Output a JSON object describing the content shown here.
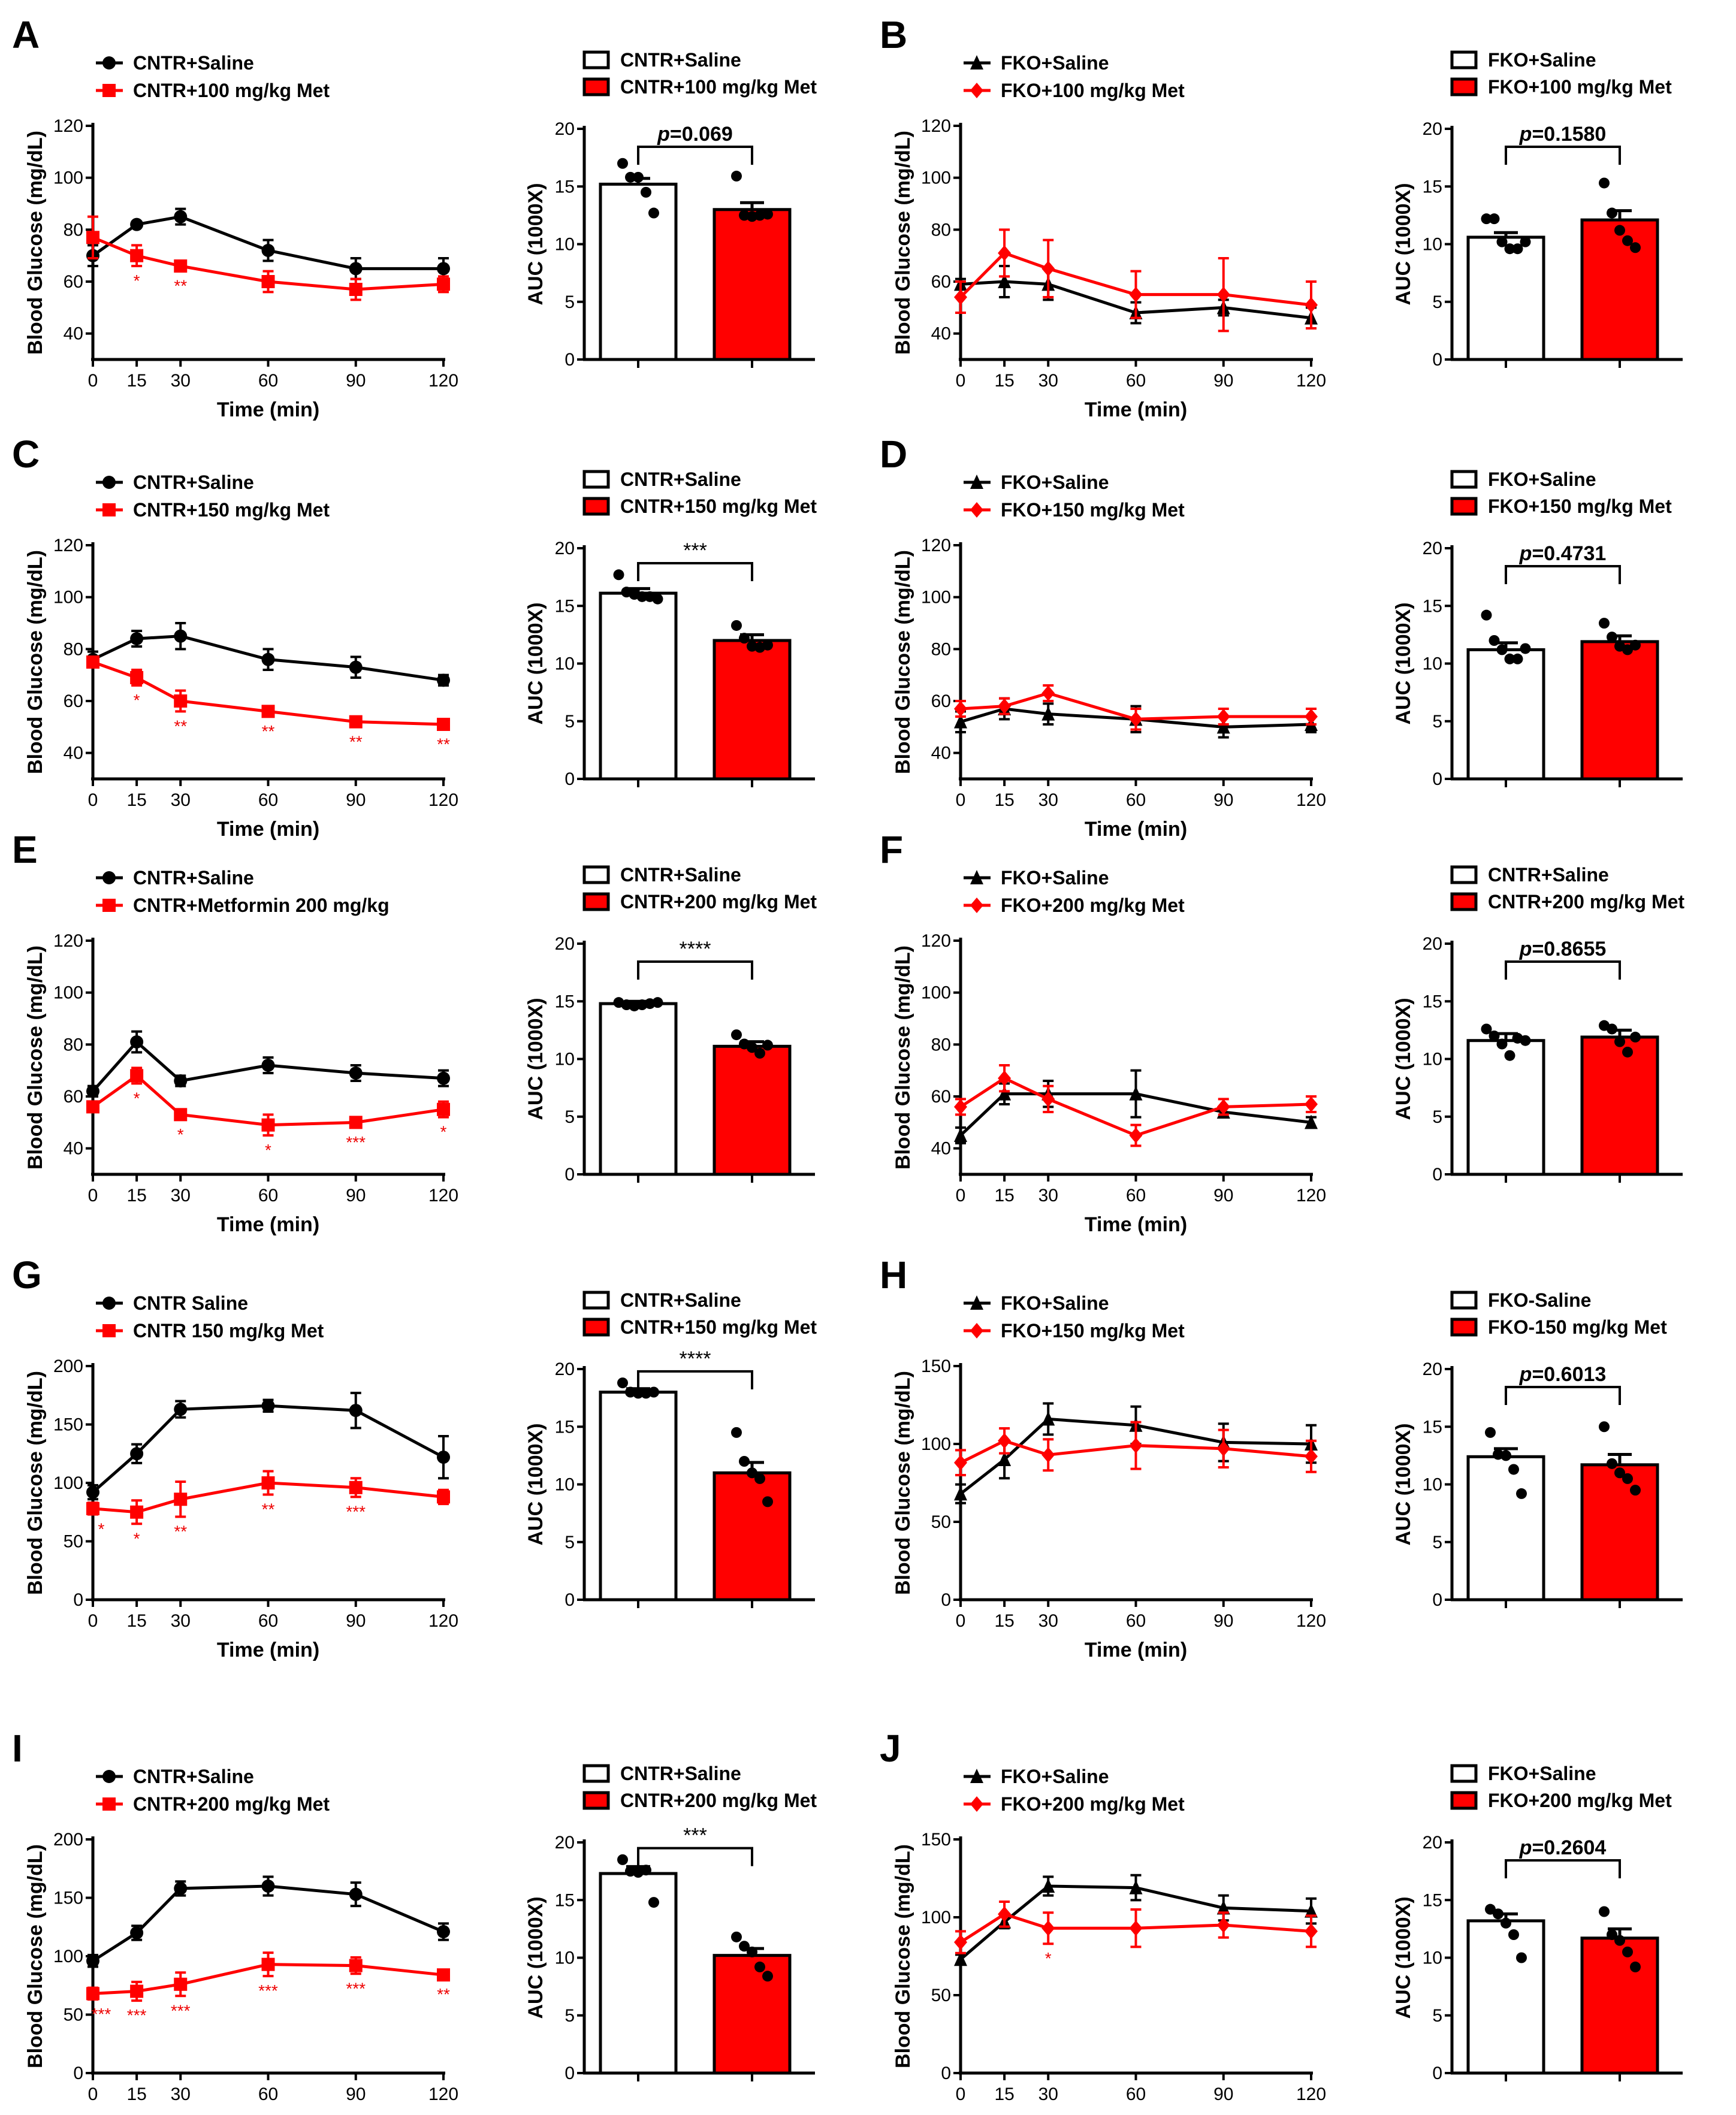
{
  "colors": {
    "saline": "#000000",
    "met": "#ff0000"
  },
  "common": {
    "line_ylabel": "Blood Glucose (mg/dL)",
    "line_xlabel": "Time (min)",
    "bar_ylabel": "AUC (1000X)"
  },
  "chart_data": [
    {
      "panel": "A",
      "type": "line+bar",
      "x": [
        0,
        15,
        30,
        60,
        90,
        120
      ],
      "ylim": [
        30,
        120
      ],
      "yticks": [
        40,
        60,
        80,
        100,
        120
      ],
      "marker_saline": "circle",
      "marker_met": "square",
      "line_legend": [
        "CNTR+Saline",
        "CNTR+100 mg/kg Met"
      ],
      "series": [
        {
          "name": "CNTR+Saline",
          "values": [
            70,
            82,
            85,
            72,
            65,
            65
          ],
          "err": [
            4,
            1,
            3,
            4,
            4,
            4
          ]
        },
        {
          "name": "CNTR+100 mg/kg Met",
          "values": [
            77,
            70,
            66,
            60,
            57,
            59
          ],
          "err": [
            8,
            4,
            2,
            4,
            4,
            3
          ]
        }
      ],
      "stars": [
        {
          "x": 15,
          "label": "*"
        },
        {
          "x": 30,
          "label": "**"
        }
      ],
      "bar": {
        "legend": [
          "CNTR+Saline",
          "CNTR+100 mg/kg Met"
        ],
        "ylim": [
          0,
          20
        ],
        "yticks": [
          0,
          5,
          10,
          15,
          20
        ],
        "values": [
          15.2,
          13.0
        ],
        "err": [
          0.5,
          0.6
        ],
        "points": [
          [
            17,
            15.8,
            15.8,
            14.5,
            12.7
          ],
          [
            15.9,
            12.5,
            12.4,
            12.5,
            12.6
          ]
        ],
        "p_prefix": "p",
        "p_text": "=0.069"
      }
    },
    {
      "panel": "B",
      "type": "line+bar",
      "x": [
        0,
        15,
        30,
        60,
        90,
        120
      ],
      "ylim": [
        30,
        120
      ],
      "yticks": [
        40,
        60,
        80,
        100,
        120
      ],
      "marker_saline": "triangle",
      "marker_met": "diamond",
      "line_legend": [
        "FKO+Saline",
        "FKO+100 mg/kg Met"
      ],
      "series": [
        {
          "name": "FKO+Saline",
          "values": [
            59,
            60,
            59,
            48,
            50,
            46
          ],
          "err": [
            2,
            6,
            6,
            4,
            3,
            4
          ]
        },
        {
          "name": "FKO+100 mg/kg Met",
          "values": [
            54,
            71,
            65,
            55,
            55,
            51
          ],
          "err": [
            6,
            9,
            11,
            9,
            14,
            9
          ]
        }
      ],
      "stars": [],
      "bar": {
        "legend": [
          "FKO+Saline",
          "FKO+100 mg/kg Met"
        ],
        "ylim": [
          0,
          20
        ],
        "yticks": [
          0,
          5,
          10,
          15,
          20
        ],
        "values": [
          10.6,
          12.1
        ],
        "err": [
          0.4,
          0.8
        ],
        "points": [
          [
            12.2,
            12.2,
            10.2,
            9.6,
            9.6,
            10.2
          ],
          [
            15.3,
            12.7,
            11.2,
            10.3,
            9.7
          ]
        ],
        "p_prefix": "p",
        "p_text": "=0.1580"
      }
    },
    {
      "panel": "C",
      "type": "line+bar",
      "x": [
        0,
        15,
        30,
        60,
        90,
        120
      ],
      "ylim": [
        30,
        120
      ],
      "yticks": [
        40,
        60,
        80,
        100,
        120
      ],
      "marker_saline": "circle",
      "marker_met": "square",
      "line_legend": [
        "CNTR+Saline",
        "CNTR+150 mg/kg Met"
      ],
      "series": [
        {
          "name": "CNTR+Saline",
          "values": [
            76,
            84,
            85,
            76,
            73,
            68
          ],
          "err": [
            3,
            3,
            5,
            4,
            4,
            2
          ]
        },
        {
          "name": "CNTR+150 mg/kg Met",
          "values": [
            75,
            69,
            60,
            56,
            52,
            51
          ],
          "err": [
            2,
            3,
            4,
            2,
            2,
            2
          ]
        }
      ],
      "stars": [
        {
          "x": 15,
          "label": "*"
        },
        {
          "x": 30,
          "label": "**"
        },
        {
          "x": 60,
          "label": "**"
        },
        {
          "x": 90,
          "label": "**"
        },
        {
          "x": 120,
          "label": "**"
        }
      ],
      "bar": {
        "legend": [
          "CNTR+Saline",
          "CNTR+150 mg/kg Met"
        ],
        "ylim": [
          0,
          20
        ],
        "yticks": [
          0,
          5,
          10,
          15,
          20
        ],
        "values": [
          16.1,
          12.0
        ],
        "err": [
          0.4,
          0.5
        ],
        "points": [
          [
            17.7,
            16.2,
            16,
            15.8,
            15.8,
            15.6
          ],
          [
            13.3,
            12.2,
            11.5,
            11.4,
            11.6
          ]
        ],
        "p_prefix": "",
        "p_text": "***"
      }
    },
    {
      "panel": "D",
      "type": "line+bar",
      "x": [
        0,
        15,
        30,
        60,
        90,
        120
      ],
      "ylim": [
        30,
        120
      ],
      "yticks": [
        40,
        60,
        80,
        100,
        120
      ],
      "marker_saline": "triangle",
      "marker_met": "diamond",
      "line_legend": [
        "FKO+Saline",
        "FKO+150 mg/kg Met"
      ],
      "series": [
        {
          "name": "FKO+Saline",
          "values": [
            52,
            57,
            55,
            53,
            50,
            51
          ],
          "err": [
            4,
            4,
            4,
            5,
            4,
            3
          ]
        },
        {
          "name": "FKO+150 mg/kg Met",
          "values": [
            57,
            58,
            63,
            53,
            54,
            54
          ],
          "err": [
            3,
            3,
            3,
            4,
            3,
            3
          ]
        }
      ],
      "stars": [],
      "bar": {
        "legend": [
          "FKO+Saline",
          "FKO+150 mg/kg Met"
        ],
        "ylim": [
          0,
          20
        ],
        "yticks": [
          0,
          5,
          10,
          15,
          20
        ],
        "values": [
          11.2,
          11.9
        ],
        "err": [
          0.6,
          0.5
        ],
        "points": [
          [
            14.2,
            12.0,
            11.2,
            10.4,
            10.4,
            11.3
          ],
          [
            13.5,
            12.3,
            11.5,
            11.2,
            11.6
          ]
        ],
        "p_prefix": "p",
        "p_text": "=0.4731"
      }
    },
    {
      "panel": "E",
      "type": "line+bar",
      "x": [
        0,
        15,
        30,
        60,
        90,
        120
      ],
      "ylim": [
        30,
        120
      ],
      "yticks": [
        40,
        60,
        80,
        100,
        120
      ],
      "marker_saline": "circle",
      "marker_met": "square",
      "line_legend": [
        "CNTR+Saline",
        "CNTR+Metformin 200 mg/kg"
      ],
      "series": [
        {
          "name": "CNTR+Saline",
          "values": [
            62,
            81,
            66,
            72,
            69,
            67
          ],
          "err": [
            2,
            4,
            2,
            3,
            3,
            3
          ]
        },
        {
          "name": "CNTR+Metformin 200 mg/kg",
          "values": [
            56,
            68,
            53,
            49,
            50,
            55
          ],
          "err": [
            2,
            3,
            2,
            4,
            2,
            3
          ]
        }
      ],
      "stars": [
        {
          "x": 15,
          "label": "*"
        },
        {
          "x": 30,
          "label": "*"
        },
        {
          "x": 60,
          "label": "*"
        },
        {
          "x": 90,
          "label": "***"
        },
        {
          "x": 120,
          "label": "*"
        }
      ],
      "bar": {
        "legend": [
          "CNTR+Saline",
          "CNTR+200 mg/kg Met"
        ],
        "ylim": [
          0,
          20
        ],
        "yticks": [
          0,
          5,
          10,
          15,
          20
        ],
        "values": [
          14.8,
          11.1
        ],
        "err": [
          0.2,
          0.4
        ],
        "points": [
          [
            14.9,
            14.7,
            14.6,
            14.7,
            14.8,
            14.9
          ],
          [
            12.1,
            11.3,
            11.0,
            10.5,
            11.2
          ]
        ],
        "p_prefix": "",
        "p_text": "****"
      }
    },
    {
      "panel": "F",
      "type": "line+bar",
      "x": [
        0,
        15,
        30,
        60,
        90,
        120
      ],
      "ylim": [
        30,
        120
      ],
      "yticks": [
        40,
        60,
        80,
        100,
        120
      ],
      "marker_saline": "triangle",
      "marker_met": "diamond",
      "line_legend": [
        "FKO+Saline",
        "FKO+200 mg/kg Met"
      ],
      "series": [
        {
          "name": "FKO+Saline",
          "values": [
            45,
            61,
            61,
            61,
            54,
            50
          ],
          "err": [
            3,
            4,
            5,
            9,
            2,
            2
          ]
        },
        {
          "name": "FKO+200 mg/kg Met",
          "values": [
            56,
            67,
            59,
            45,
            56,
            57
          ],
          "err": [
            3,
            5,
            5,
            4,
            3,
            3
          ]
        }
      ],
      "stars": [],
      "bar": {
        "legend": [
          "CNTR+Saline",
          "CNTR+200 mg/kg Met"
        ],
        "ylim": [
          0,
          20
        ],
        "yticks": [
          0,
          5,
          10,
          15,
          20
        ],
        "values": [
          11.6,
          11.9
        ],
        "err": [
          0.6,
          0.6
        ],
        "points": [
          [
            12.6,
            12.0,
            11.3,
            10.3,
            11.8,
            11.6
          ],
          [
            12.9,
            12.6,
            11.5,
            10.6,
            11.9
          ]
        ],
        "p_prefix": "p",
        "p_text": "=0.8655"
      }
    },
    {
      "panel": "G",
      "type": "line+bar",
      "x": [
        0,
        15,
        30,
        60,
        90,
        120
      ],
      "ylim": [
        0,
        200
      ],
      "yticks": [
        0,
        50,
        100,
        150,
        200
      ],
      "marker_saline": "circle",
      "marker_met": "square",
      "line_legend": [
        "CNTR Saline",
        "CNTR 150 mg/kg Met"
      ],
      "series": [
        {
          "name": "CNTR Saline",
          "values": [
            92,
            125,
            163,
            166,
            162,
            122
          ],
          "err": [
            6,
            8,
            7,
            5,
            15,
            18
          ]
        },
        {
          "name": "CNTR 150 mg/kg Met",
          "values": [
            78,
            75,
            86,
            100,
            96,
            88
          ],
          "err": [
            5,
            10,
            15,
            10,
            8,
            6
          ]
        }
      ],
      "stars": [
        {
          "x": 0,
          "label": "*"
        },
        {
          "x": 15,
          "label": "*"
        },
        {
          "x": 30,
          "label": "**"
        },
        {
          "x": 60,
          "label": "**"
        },
        {
          "x": 90,
          "label": "***"
        }
      ],
      "bar": {
        "legend": [
          "CNTR+Saline",
          "CNTR+150 mg/kg Met"
        ],
        "ylim": [
          0,
          20
        ],
        "yticks": [
          0,
          5,
          10,
          15,
          20
        ],
        "values": [
          18.0,
          11.0
        ],
        "err": [
          0.3,
          0.9
        ],
        "points": [
          [
            18.8,
            18.0,
            17.9,
            17.9,
            18.0
          ],
          [
            14.5,
            12.0,
            11.0,
            10.5,
            8.5
          ]
        ],
        "p_prefix": "",
        "p_text": "****"
      }
    },
    {
      "panel": "H",
      "type": "line+bar",
      "x": [
        0,
        15,
        30,
        60,
        90,
        120
      ],
      "ylim": [
        0,
        150
      ],
      "yticks": [
        0,
        50,
        100,
        150
      ],
      "marker_saline": "triangle",
      "marker_met": "diamond",
      "line_legend": [
        "FKO+Saline",
        "FKO+150 mg/kg Met"
      ],
      "series": [
        {
          "name": "FKO+Saline",
          "values": [
            68,
            90,
            116,
            112,
            101,
            100
          ],
          "err": [
            6,
            12,
            10,
            12,
            12,
            12
          ]
        },
        {
          "name": "FKO+150 mg/kg Met",
          "values": [
            88,
            102,
            93,
            99,
            97,
            92
          ],
          "err": [
            8,
            8,
            10,
            15,
            12,
            10
          ]
        }
      ],
      "stars": [],
      "bar": {
        "legend": [
          "FKO-Saline",
          "FKO-150 mg/kg Met"
        ],
        "ylim": [
          0,
          20
        ],
        "yticks": [
          0,
          5,
          10,
          15,
          20
        ],
        "values": [
          12.4,
          11.7
        ],
        "err": [
          0.7,
          0.9
        ],
        "points": [
          [
            14.5,
            12.6,
            12.5,
            11.3,
            9.2
          ],
          [
            15.0,
            11.8,
            11.0,
            10.5,
            9.5
          ]
        ],
        "p_prefix": "p",
        "p_text": "=0.6013"
      }
    },
    {
      "panel": "I",
      "type": "line+bar",
      "x": [
        0,
        15,
        30,
        60,
        90,
        120
      ],
      "ylim": [
        0,
        200
      ],
      "yticks": [
        0,
        50,
        100,
        150,
        200
      ],
      "marker_saline": "circle",
      "marker_met": "square",
      "line_legend": [
        "CNTR+Saline",
        "CNTR+200 mg/kg Met"
      ],
      "series": [
        {
          "name": "CNTR+Saline",
          "values": [
            96,
            120,
            158,
            160,
            153,
            121
          ],
          "err": [
            5,
            6,
            6,
            8,
            10,
            7
          ]
        },
        {
          "name": "CNTR+200 mg/kg Met",
          "values": [
            68,
            70,
            76,
            93,
            92,
            84
          ],
          "err": [
            5,
            8,
            10,
            10,
            7,
            4
          ]
        }
      ],
      "stars": [
        {
          "x": 0,
          "label": "***"
        },
        {
          "x": 15,
          "label": "***"
        },
        {
          "x": 30,
          "label": "***"
        },
        {
          "x": 60,
          "label": "***"
        },
        {
          "x": 90,
          "label": "***"
        },
        {
          "x": 120,
          "label": "**"
        }
      ],
      "bar": {
        "legend": [
          "CNTR+Saline",
          "CNTR+200 mg/kg Met"
        ],
        "ylim": [
          0,
          20
        ],
        "yticks": [
          0,
          5,
          10,
          15,
          20
        ],
        "values": [
          17.3,
          10.2
        ],
        "err": [
          0.6,
          0.6
        ],
        "points": [
          [
            18.5,
            17.5,
            17.4,
            17.6,
            14.8
          ],
          [
            11.8,
            11.0,
            10.5,
            9.2,
            8.4
          ]
        ],
        "p_prefix": "",
        "p_text": "***"
      }
    },
    {
      "panel": "J",
      "type": "line+bar",
      "x": [
        0,
        15,
        30,
        60,
        90,
        120
      ],
      "ylim": [
        0,
        150
      ],
      "yticks": [
        0,
        50,
        100,
        150
      ],
      "marker_saline": "triangle",
      "marker_met": "diamond",
      "line_legend": [
        "FKO+Saline",
        "FKO+200 mg/kg Met"
      ],
      "series": [
        {
          "name": "FKO+Saline",
          "values": [
            73,
            97,
            120,
            119,
            106,
            104
          ],
          "err": [
            3,
            4,
            6,
            8,
            8,
            8
          ]
        },
        {
          "name": "FKO+200 mg/kg Met",
          "values": [
            84,
            102,
            93,
            93,
            95,
            91
          ],
          "err": [
            7,
            8,
            10,
            12,
            8,
            10
          ]
        }
      ],
      "stars": [
        {
          "x": 30,
          "label": "*"
        }
      ],
      "bar": {
        "legend": [
          "FKO+Saline",
          "FKO+200 mg/kg Met"
        ],
        "ylim": [
          0,
          20
        ],
        "yticks": [
          0,
          5,
          10,
          15,
          20
        ],
        "values": [
          13.2,
          11.7
        ],
        "err": [
          0.6,
          0.8
        ],
        "points": [
          [
            14.2,
            13.8,
            13.0,
            12.0,
            10.0
          ],
          [
            14.0,
            12.0,
            11.5,
            10.5,
            9.2
          ]
        ],
        "p_prefix": "p",
        "p_text": "=0.2604"
      }
    }
  ]
}
